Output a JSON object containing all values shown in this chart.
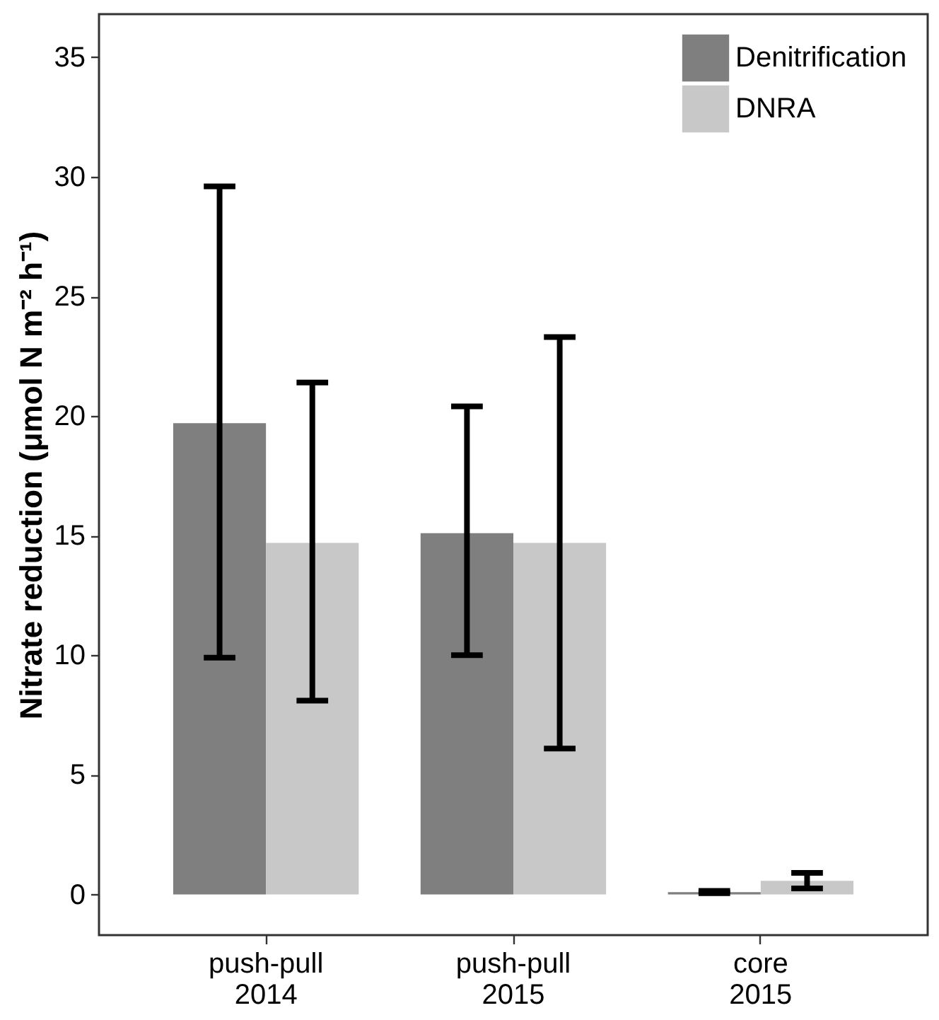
{
  "chart_data": {
    "type": "bar",
    "categories": [
      "push-pull\n2014",
      "push-pull\n2015",
      "core\n2015"
    ],
    "ylabel": "Nitrate reduction (μmol N m⁻² h⁻¹)",
    "series": [
      {
        "name": "Denitrification",
        "color": "#7f7f7f",
        "values": [
          19.7,
          15.1,
          0.1
        ],
        "errors": [
          [
            9.9,
            29.6
          ],
          [
            10.0,
            20.4
          ],
          [
            0.05,
            0.15
          ]
        ]
      },
      {
        "name": "DNRA",
        "color": "#c8c8c8",
        "values": [
          14.7,
          14.7,
          0.57
        ],
        "errors": [
          [
            8.1,
            21.4
          ],
          [
            6.1,
            23.3
          ],
          [
            0.25,
            0.9
          ]
        ]
      }
    ],
    "ylim": [
      -1.7,
      36.8
    ],
    "yticks": [
      0,
      5,
      10,
      15,
      20,
      25,
      30,
      35
    ],
    "grid": false,
    "legend": "top right"
  }
}
